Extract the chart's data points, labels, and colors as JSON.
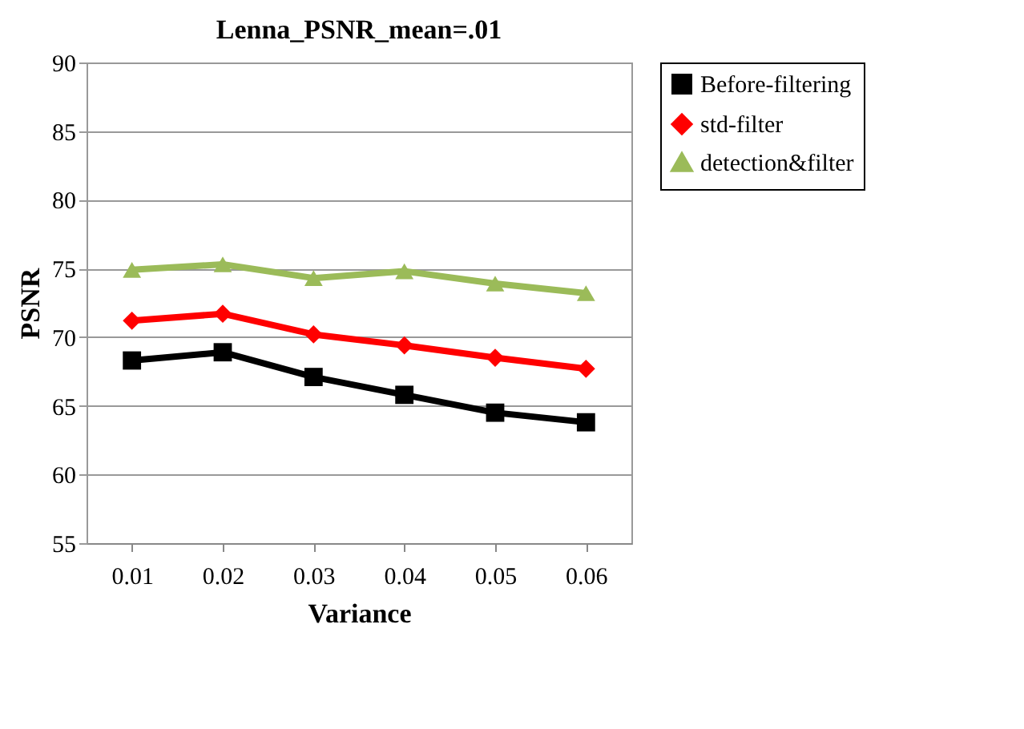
{
  "chart_data": {
    "type": "line",
    "title": "Lenna_PSNR_mean=.01",
    "xlabel": "Variance",
    "ylabel": "PSNR",
    "categories": [
      "0.01",
      "0.02",
      "0.03",
      "0.04",
      "0.05",
      "0.06"
    ],
    "series": [
      {
        "name": "Before-filtering",
        "color": "#000000",
        "marker": "square",
        "values": [
          68.3,
          68.9,
          67.1,
          65.8,
          64.5,
          63.8
        ]
      },
      {
        "name": "std-filter",
        "color": "#ff0000",
        "marker": "diamond",
        "values": [
          71.2,
          71.7,
          70.2,
          69.4,
          68.5,
          67.7
        ]
      },
      {
        "name": "detection&filter",
        "color": "#9bbb59",
        "marker": "triangle",
        "values": [
          74.9,
          75.3,
          74.3,
          74.8,
          73.9,
          73.2
        ]
      }
    ],
    "ylim": [
      55,
      90
    ],
    "yticks": [
      55,
      60,
      65,
      70,
      75,
      80,
      85,
      90
    ],
    "grid": "y",
    "legend": "right"
  }
}
